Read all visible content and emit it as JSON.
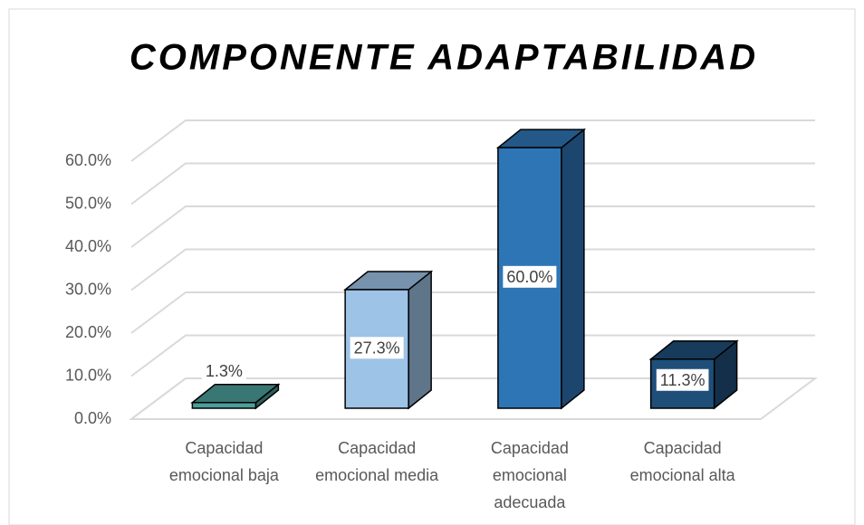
{
  "chart_data": {
    "type": "bar3d",
    "title": "COMPONENTE ADAPTABILIDAD",
    "categories": [
      "Capacidad emocional baja",
      "Capacidad emocional media",
      "Capacidad emocional adecuada",
      "Capacidad emocional alta"
    ],
    "values": [
      1.3,
      27.3,
      60.0,
      11.3
    ],
    "value_labels": [
      "1.3%",
      "27.3%",
      "60.0%",
      "11.3%"
    ],
    "colors": [
      "#4a9f9a",
      "#9dc3e6",
      "#2e75b6",
      "#1f4e79"
    ],
    "ylim": [
      0,
      60
    ],
    "yticks": [
      {
        "value": 0,
        "label": "0.0%"
      },
      {
        "value": 10,
        "label": "10.0%"
      },
      {
        "value": 20,
        "label": "20.0%"
      },
      {
        "value": 30,
        "label": "30.0%"
      },
      {
        "value": 40,
        "label": "40.0%"
      },
      {
        "value": 50,
        "label": "50.0%"
      },
      {
        "value": 60,
        "label": "60.0%"
      }
    ],
    "grid": true
  }
}
